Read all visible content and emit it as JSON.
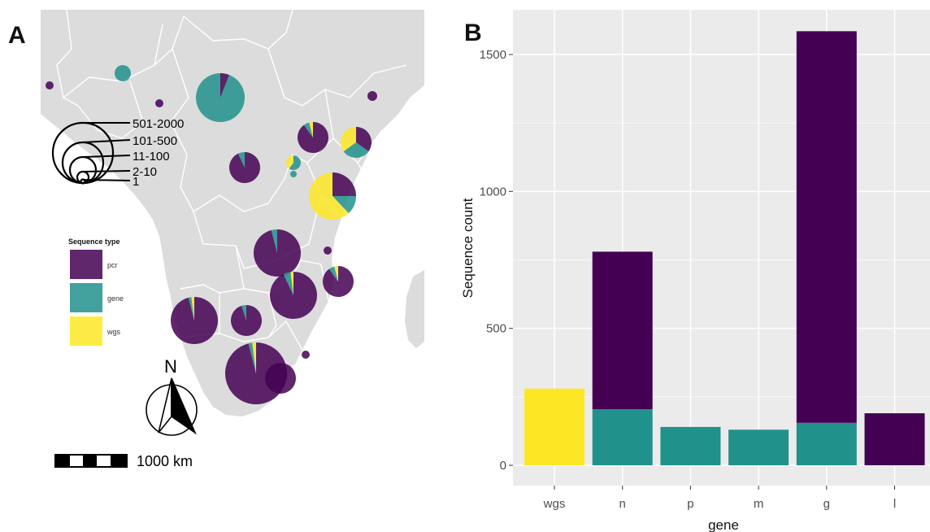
{
  "panels": {
    "a_label": "A",
    "b_label": "B"
  },
  "map": {
    "size_legend": [
      "501-2000",
      "101-500",
      "11-100",
      "2-10",
      "1"
    ],
    "type_legend_title": "Sequence type",
    "type_legend": [
      {
        "label": "pcr",
        "color": "#440154"
      },
      {
        "label": "gene",
        "color": "#21918c"
      },
      {
        "label": "wgs",
        "color": "#fde725"
      }
    ],
    "north_label": "N",
    "scale_label": "1000 km",
    "land_color": "#dcdcdc",
    "ocean_color": "#ffffff"
  },
  "chart_data": {
    "type": "bar",
    "stacked": true,
    "categories": [
      "wgs",
      "n",
      "p",
      "m",
      "g",
      "l"
    ],
    "series": [
      {
        "name": "wgs",
        "color": "#fde725",
        "values": [
          280,
          0,
          0,
          0,
          0,
          0
        ]
      },
      {
        "name": "gene",
        "color": "#21918c",
        "values": [
          0,
          205,
          140,
          130,
          155,
          0
        ]
      },
      {
        "name": "pcr",
        "color": "#440154",
        "values": [
          0,
          575,
          0,
          0,
          1430,
          190
        ]
      }
    ],
    "xlabel": "gene",
    "ylabel": "Sequence count",
    "ylim": [
      0,
      1600
    ],
    "yticks": [
      0,
      500,
      1000,
      1500
    ],
    "grid": true,
    "panel_background": "#ebebeb"
  }
}
